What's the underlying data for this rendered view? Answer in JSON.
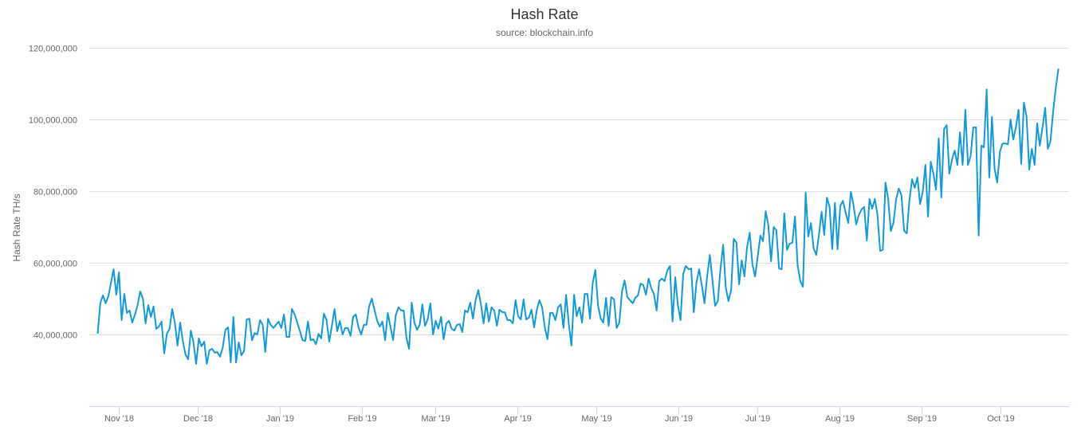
{
  "chart_data": {
    "type": "line",
    "title": "Hash Rate",
    "subtitle": "source: blockchain.info",
    "ylabel": "Hash Rate TH/s",
    "xlabel": "",
    "ylim": [
      20000000,
      120000000
    ],
    "y_ticks": [
      40000000,
      60000000,
      80000000,
      100000000,
      120000000
    ],
    "y_tick_labels": [
      "40,000,000",
      "60,000,000",
      "80,000,000",
      "100,000,000",
      "120,000,000"
    ],
    "x_ticks": [
      "2018-11-01",
      "2018-12-01",
      "2019-01-01",
      "2019-02-01",
      "2019-03-01",
      "2019-04-01",
      "2019-05-01",
      "2019-06-01",
      "2019-07-01",
      "2019-08-01",
      "2019-09-01",
      "2019-10-01"
    ],
    "x_tick_labels": [
      "Nov '18",
      "Dec '18",
      "Jan '19",
      "Feb '19",
      "Mar '19",
      "Apr '19",
      "May '19",
      "Jun '19",
      "Jul '19",
      "Aug '19",
      "Sep '19",
      "Oct '19"
    ],
    "grid": true,
    "legend": "none",
    "color": "#139ad6",
    "series": [
      {
        "name": "Hash Rate",
        "start_date": "2018-10-24",
        "end_date": "2019-10-23",
        "unit": "million TH/s",
        "values": [
          40.2,
          48.9,
          50.9,
          48.7,
          50.7,
          54.4,
          58.2,
          51.1,
          57.3,
          44,
          51.3,
          46,
          46.7,
          43.3,
          45.6,
          48.2,
          52,
          50,
          43.1,
          48.2,
          44.9,
          47.8,
          41.6,
          42.2,
          43.6,
          34.7,
          40.2,
          41.6,
          47.1,
          43.3,
          36.9,
          43.3,
          38.2,
          34.4,
          33.1,
          41.1,
          37.8,
          31.8,
          38.9,
          36.7,
          38,
          31.8,
          35.6,
          36,
          34.9,
          35.1,
          33.8,
          36.4,
          41.3,
          42,
          32.2,
          44.9,
          32.2,
          37.8,
          34.2,
          35.3,
          44.2,
          44.4,
          38.4,
          40.4,
          40,
          44,
          42.7,
          35.1,
          44.4,
          42.7,
          41.8,
          42.7,
          43.6,
          41.8,
          45.6,
          39.3,
          39.3,
          47.1,
          45.6,
          43.3,
          40.9,
          38.4,
          38.2,
          43.6,
          38.4,
          38.7,
          37.3,
          40.2,
          38.9,
          45.8,
          44,
          38,
          42.4,
          47.1,
          40.9,
          43.8,
          40,
          41.8,
          41.8,
          39.6,
          44.9,
          45.6,
          42,
          40,
          42.7,
          42.7,
          47.8,
          50,
          46.9,
          43.8,
          42.2,
          43.6,
          38.4,
          46,
          42.2,
          38.4,
          45.3,
          47.6,
          46.7,
          46.7,
          39.1,
          36,
          48.9,
          43.3,
          41.3,
          42.7,
          48.4,
          42.4,
          44.2,
          48.7,
          40,
          43.8,
          41.6,
          44.9,
          38.7,
          43.1,
          43.8,
          41.6,
          41.1,
          42.7,
          42.9,
          40.7,
          46.7,
          46.2,
          48.9,
          44.4,
          49.6,
          52.4,
          48.4,
          43.1,
          48.7,
          43.6,
          47.6,
          46.7,
          42.4,
          46.9,
          46.2,
          46.2,
          44,
          44,
          43.1,
          49.6,
          45.1,
          44.2,
          49.8,
          44.2,
          44.7,
          46.9,
          42,
          46.9,
          49.6,
          47.6,
          42,
          38.7,
          46,
          46,
          44,
          47.6,
          48.4,
          41.8,
          51.1,
          43.1,
          36.9,
          51.1,
          45.1,
          47.6,
          43.3,
          51.3,
          51.3,
          44.4,
          54.4,
          58,
          48,
          44.4,
          43.3,
          50.2,
          42.4,
          50.4,
          49.8,
          41.8,
          43.3,
          52,
          55.1,
          50.4,
          49.6,
          48.7,
          50.2,
          50.9,
          54.2,
          53.8,
          51.1,
          55.6,
          52.9,
          51.3,
          46.7,
          54.9,
          55.6,
          54.9,
          57.8,
          59.1,
          43.6,
          56,
          48.2,
          44,
          56.9,
          59.1,
          58.2,
          58.4,
          46.2,
          54.7,
          58.2,
          53.6,
          48.7,
          56.2,
          62.2,
          55.1,
          48,
          49.3,
          58.2,
          65.1,
          53.1,
          49.3,
          52.4,
          66.7,
          65.6,
          54,
          60.7,
          56.2,
          64.4,
          68.4,
          59.6,
          56.2,
          61.8,
          67.6,
          66,
          74.4,
          70.4,
          60.4,
          70,
          69.1,
          58.4,
          58.2,
          73.8,
          63.6,
          65.3,
          65.6,
          72.9,
          59.3,
          54.9,
          53.3,
          79.6,
          67.3,
          71.1,
          64,
          62.2,
          67.8,
          74.2,
          67.8,
          78.2,
          75.6,
          63.8,
          76.7,
          63.8,
          75.8,
          77.3,
          74.2,
          71.1,
          79.8,
          76,
          70.7,
          73.3,
          74.9,
          75.6,
          66.2,
          77.8,
          75.1,
          77.8,
          73.3,
          63.3,
          63.6,
          82.4,
          77.8,
          68.9,
          71.1,
          77.8,
          80.7,
          78.9,
          68.9,
          68.2,
          77.6,
          83.3,
          80.9,
          83.8,
          76.4,
          79.8,
          87.3,
          72.9,
          88.2,
          84.9,
          80.4,
          94.7,
          78.2,
          97.3,
          98.4,
          84.9,
          88.9,
          91.3,
          87.3,
          96.4,
          87.3,
          102.7,
          87.3,
          89.8,
          97.8,
          97.8,
          67.6,
          92.7,
          92.2,
          108.4,
          83.8,
          100.7,
          86.2,
          82.4,
          91.1,
          93.3,
          93.3,
          93.1,
          100,
          94.4,
          97.8,
          102.7,
          87.6,
          104.7,
          100.7,
          86,
          91.8,
          87.3,
          98.9,
          92.7,
          97.8,
          103.3,
          91.8,
          94,
          102.2,
          108.9,
          114.2
        ]
      }
    ]
  }
}
